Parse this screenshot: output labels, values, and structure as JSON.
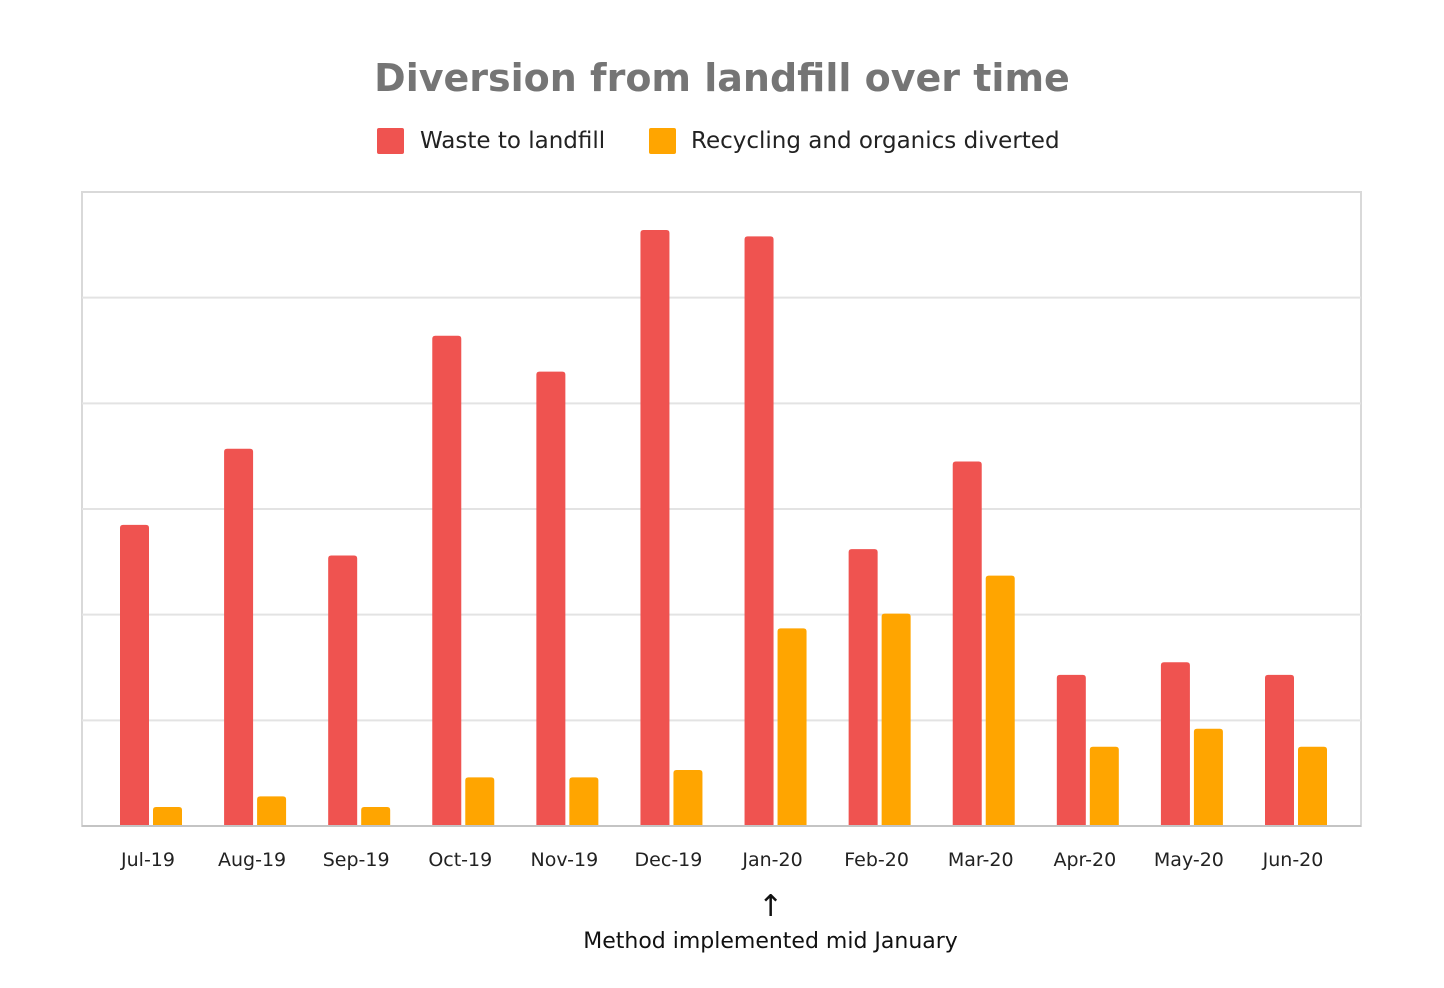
{
  "chart_data": {
    "type": "bar",
    "title": "Diversion from landfill over time",
    "xlabel": "",
    "ylabel": "",
    "categories": [
      "Jul-19",
      "Aug-19",
      "Sep-19",
      "Oct-19",
      "Nov-19",
      "Dec-19",
      "Jan-20",
      "Feb-20",
      "Mar-20",
      "Apr-20",
      "May-20",
      "Jun-20"
    ],
    "series": [
      {
        "name": "Waste to landfill",
        "color": "#ef5350",
        "values": [
          2.85,
          3.57,
          2.56,
          4.64,
          4.3,
          5.64,
          5.58,
          2.62,
          3.45,
          1.43,
          1.55,
          1.43
        ]
      },
      {
        "name": "Recycling and organics diverted",
        "color": "#ffa500",
        "values": [
          0.18,
          0.28,
          0.18,
          0.46,
          0.46,
          0.53,
          1.87,
          2.01,
          2.37,
          0.75,
          0.92,
          0.75
        ]
      }
    ],
    "ylim": [
      0,
      6
    ],
    "gridlines": [
      1,
      2,
      3,
      4,
      5
    ],
    "grid": true,
    "y_tick_labels_shown": false,
    "legend_position": "top-center",
    "annotation": {
      "category": "Jan-20",
      "text": "Method implemented mid January",
      "arrow": "↑"
    }
  }
}
